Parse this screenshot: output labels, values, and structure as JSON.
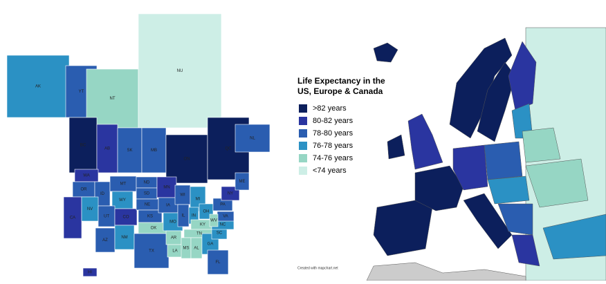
{
  "legend": {
    "title": [
      "Life Expectancy in the",
      "US, Europe & Canada"
    ],
    "items": [
      {
        "label": ">82 years",
        "color": "#0c1f5c"
      },
      {
        "label": "80-82 years",
        "color": "#2a35a0"
      },
      {
        "label": "78-80 years",
        "color": "#2a5db0"
      },
      {
        "label": "76-78 years",
        "color": "#2b91c4"
      },
      {
        "label": "74-76 years",
        "color": "#96d6c4"
      },
      {
        "label": "<74 years",
        "color": "#cdeee6"
      }
    ]
  },
  "credit": "Created with mapchart.net",
  "regions": [
    {
      "label": "AK",
      "color": "#2b91c4"
    },
    {
      "label": "YT",
      "color": "#2a5db0"
    },
    {
      "label": "NT",
      "color": "#96d6c4"
    },
    {
      "label": "NU",
      "color": "#cdeee6"
    },
    {
      "label": "BC",
      "color": "#0c1f5c"
    },
    {
      "label": "AB",
      "color": "#2a35a0"
    },
    {
      "label": "SK",
      "color": "#2a5db0"
    },
    {
      "label": "MB",
      "color": "#2a5db0"
    },
    {
      "label": "ON",
      "color": "#0c1f5c"
    },
    {
      "label": "QC",
      "color": "#0c1f5c"
    },
    {
      "label": "NL",
      "color": "#2a5db0"
    },
    {
      "label": "WA",
      "color": "#2a35a0"
    },
    {
      "label": "OR",
      "color": "#2a5db0"
    },
    {
      "label": "CA",
      "color": "#2a35a0"
    },
    {
      "label": "ID",
      "color": "#2a5db0"
    },
    {
      "label": "MT",
      "color": "#2a5db0"
    },
    {
      "label": "WY",
      "color": "#2b91c4"
    },
    {
      "label": "NV",
      "color": "#2b91c4"
    },
    {
      "label": "UT",
      "color": "#2a5db0"
    },
    {
      "label": "AZ",
      "color": "#2a5db0"
    },
    {
      "label": "CO",
      "color": "#2a35a0"
    },
    {
      "label": "NM",
      "color": "#2b91c4"
    },
    {
      "label": "ND",
      "color": "#2a5db0"
    },
    {
      "label": "SD",
      "color": "#2a5db0"
    },
    {
      "label": "NE",
      "color": "#2a5db0"
    },
    {
      "label": "KS",
      "color": "#2a5db0"
    },
    {
      "label": "OK",
      "color": "#96d6c4"
    },
    {
      "label": "TX",
      "color": "#2a5db0"
    },
    {
      "label": "MN",
      "color": "#2a35a0"
    },
    {
      "label": "IA",
      "color": "#2a5db0"
    },
    {
      "label": "MO",
      "color": "#2b91c4"
    },
    {
      "label": "AR",
      "color": "#96d6c4"
    },
    {
      "label": "LA",
      "color": "#96d6c4"
    },
    {
      "label": "WI",
      "color": "#2a5db0"
    },
    {
      "label": "IL",
      "color": "#2a5db0"
    },
    {
      "label": "MI",
      "color": "#2b91c4"
    },
    {
      "label": "IN",
      "color": "#2b91c4"
    },
    {
      "label": "OH",
      "color": "#2b91c4"
    },
    {
      "label": "KY",
      "color": "#96d6c4"
    },
    {
      "label": "TN",
      "color": "#96d6c4"
    },
    {
      "label": "MS",
      "color": "#96d6c4"
    },
    {
      "label": "AL",
      "color": "#96d6c4"
    },
    {
      "label": "GA",
      "color": "#2b91c4"
    },
    {
      "label": "FL",
      "color": "#2a5db0"
    },
    {
      "label": "SC",
      "color": "#2b91c4"
    },
    {
      "label": "NC",
      "color": "#2b91c4"
    },
    {
      "label": "VA",
      "color": "#2a5db0"
    },
    {
      "label": "WV",
      "color": "#96d6c4"
    },
    {
      "label": "PA",
      "color": "#2a5db0"
    },
    {
      "label": "NY",
      "color": "#2a35a0"
    },
    {
      "label": "ME",
      "color": "#2a5db0"
    },
    {
      "label": "HI",
      "color": "#2a35a0"
    }
  ]
}
